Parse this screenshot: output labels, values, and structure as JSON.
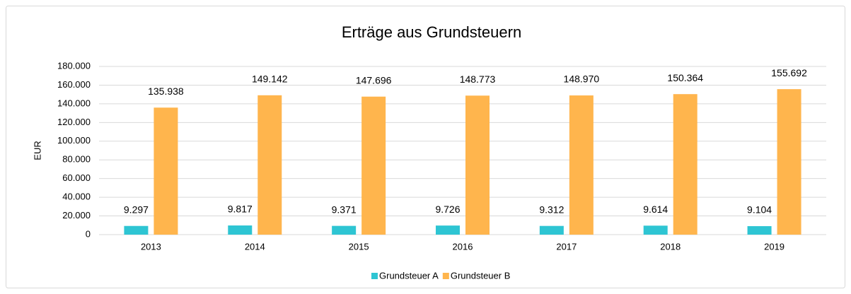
{
  "chart_data": {
    "type": "bar",
    "title": "Erträge aus Grundsteuern",
    "y_label": "EUR",
    "categories": [
      "2013",
      "2014",
      "2015",
      "2016",
      "2017",
      "2018",
      "2019"
    ],
    "series": [
      {
        "name": "Grundsteuer A",
        "color": "#2ec5d3",
        "values": [
          9297,
          9817,
          9371,
          9726,
          9312,
          9614,
          9104
        ],
        "value_labels": [
          "9.297",
          "9.817",
          "9.371",
          "9.726",
          "9.312",
          "9.614",
          "9.104"
        ]
      },
      {
        "name": "Grundsteuer B",
        "color": "#ffb54d",
        "values": [
          135938,
          149142,
          147696,
          148773,
          148970,
          150364,
          155692
        ],
        "value_labels": [
          "135.938",
          "149.142",
          "147.696",
          "148.773",
          "148.970",
          "150.364",
          "155.692"
        ]
      }
    ],
    "ylim": [
      0,
      180000
    ],
    "yticks": [
      {
        "value": 0,
        "label": "0"
      },
      {
        "value": 20000,
        "label": "20.000"
      },
      {
        "value": 40000,
        "label": "40.000"
      },
      {
        "value": 60000,
        "label": "60.000"
      },
      {
        "value": 80000,
        "label": "80.000"
      },
      {
        "value": 100000,
        "label": "100.000"
      },
      {
        "value": 120000,
        "label": "120.000"
      },
      {
        "value": 140000,
        "label": "140.000"
      },
      {
        "value": 160000,
        "label": "160.000"
      },
      {
        "value": 180000,
        "label": "180.000"
      }
    ],
    "grid": true,
    "legend": "bottom"
  }
}
